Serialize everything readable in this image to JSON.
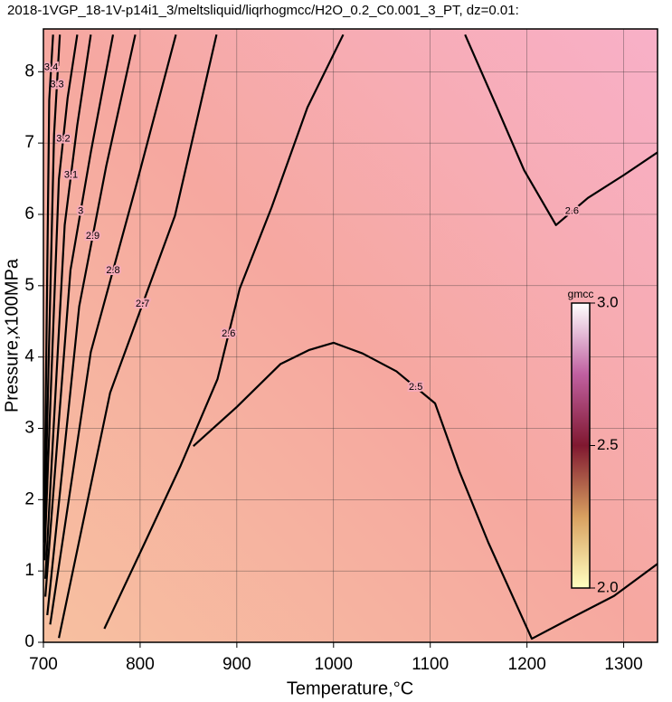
{
  "chart_data": {
    "type": "contour",
    "title": "2018-1VGP_18-1V-p14i1_3/meltsliquid/liqrhogmcc/H2O_0.2_C0.001_3_PT, dz=0.01:",
    "xlabel": "Temperature,°C",
    "ylabel": "Pressure,x100MPa",
    "xlim": [
      700,
      1335
    ],
    "ylim": [
      0,
      8.6
    ],
    "xticks": [
      700,
      800,
      900,
      1000,
      1100,
      1200,
      1300
    ],
    "yticks": [
      0,
      1,
      2,
      3,
      4,
      5,
      6,
      7,
      8
    ],
    "grid": true,
    "contours": [
      {
        "level": 2.5,
        "x": [
          855,
          900,
          945,
          975,
          1000,
          1030,
          1065,
          1105,
          1130,
          1160,
          1205,
          1240,
          1290,
          1335
        ],
        "y": [
          2.75,
          3.3,
          3.9,
          4.1,
          4.2,
          4.05,
          3.8,
          3.35,
          2.4,
          1.4,
          0.05,
          0.3,
          0.65,
          1.1
        ]
      },
      {
        "level": 2.6,
        "x": [
          763,
          805,
          842,
          880,
          903,
          936,
          973,
          1010
        ],
        "y": [
          0.19,
          1.4,
          2.48,
          3.69,
          4.96,
          6.1,
          7.5,
          8.52
        ]
      },
      {
        "level": 2.6,
        "x": [
          1136,
          1169,
          1197,
          1230,
          1263,
          1300,
          1335
        ],
        "y": [
          8.52,
          7.5,
          6.62,
          5.85,
          6.23,
          6.55,
          6.87
        ]
      },
      {
        "level": 2.7,
        "x": [
          716,
          769,
          836,
          879
        ],
        "y": [
          0.06,
          3.5,
          5.98,
          8.52
        ]
      },
      {
        "level": 2.8,
        "x": [
          707,
          749,
          795,
          837
        ],
        "y": [
          0.25,
          4.07,
          6.36,
          8.52
        ]
      },
      {
        "level": 2.9,
        "x": [
          704,
          737,
          765,
          795
        ],
        "y": [
          0.38,
          4.71,
          6.68,
          8.52
        ]
      },
      {
        "level": 3,
        "x": [
          702,
          728,
          749,
          772
        ],
        "y": [
          0.64,
          5.22,
          6.87,
          8.52
        ]
      },
      {
        "level": 3.1,
        "x": [
          702,
          722,
          735,
          749
        ],
        "y": [
          0.89,
          5.85,
          7.25,
          8.52
        ]
      },
      {
        "level": 3.2,
        "x": [
          701,
          716,
          725,
          735
        ],
        "y": [
          1.15,
          6.49,
          7.63,
          8.52
        ]
      },
      {
        "level": 3.3,
        "x": [
          701,
          711,
          717
        ],
        "y": [
          1.4,
          7.12,
          8.52
        ]
      },
      {
        "level": 3.4,
        "x": [
          701,
          706,
          710
        ],
        "y": [
          1.7,
          7.6,
          8.52
        ]
      }
    ],
    "colorbar": {
      "label": "gmcc",
      "lim": [
        2.0,
        3.0
      ],
      "ticks": [
        {
          "value": 2.0,
          "label": "2.0"
        },
        2.5,
        {
          "value": 3.0,
          "label": "3.0"
        }
      ],
      "colors": [
        "#ffffc0",
        "#d8a060",
        "#801830",
        "#c060a0",
        "#ffffff"
      ]
    }
  }
}
